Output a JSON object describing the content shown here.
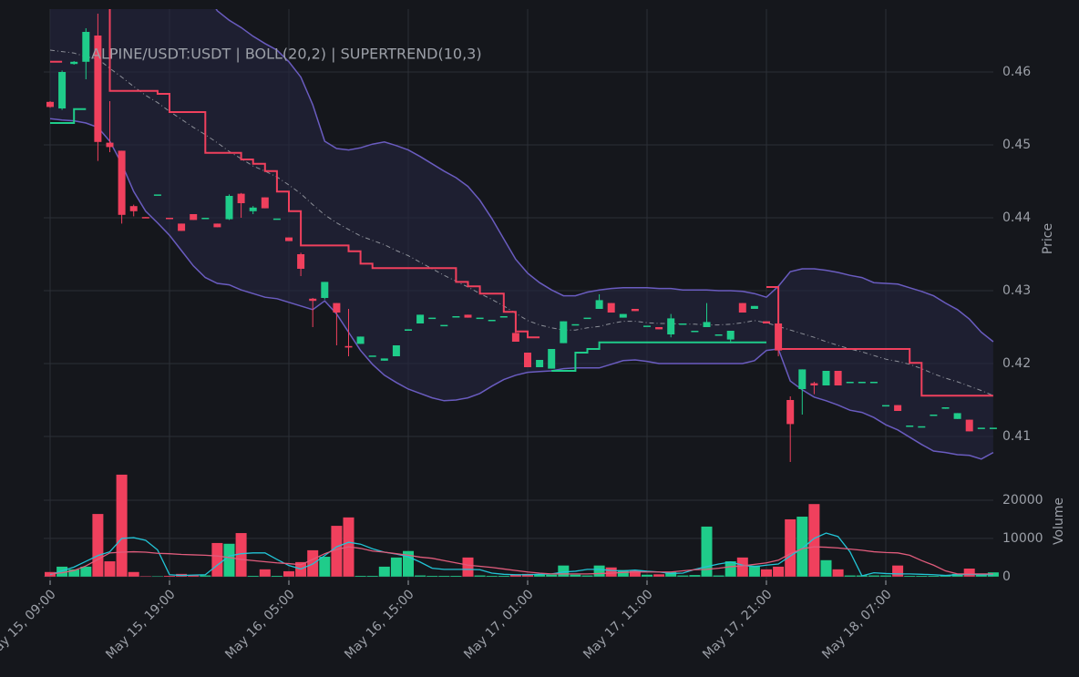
{
  "chart_data": [
    {
      "type": "candlestick",
      "title": "ALPINE/USDT:USDT | BOLL(20,2) | SUPERTREND(10,3)",
      "ylabel": "Price",
      "ylim": [
        0.402375,
        0.468625
      ],
      "yticks": [
        0.41,
        0.42,
        0.43,
        0.44,
        0.45,
        0.46
      ],
      "grid": true,
      "up_color": "#1fcc8a",
      "down_color": "#f0405d",
      "open": [
        0.4559,
        0.455,
        0.4611,
        0.4614,
        0.465,
        0.4503,
        0.4492,
        0.4416,
        0.4401,
        0.4432,
        0.44,
        0.4392,
        0.4405,
        0.44,
        0.4392,
        0.4398,
        0.4433,
        0.4409,
        0.4428,
        0.4399,
        0.4373,
        0.435,
        0.4289,
        0.429,
        0.4283,
        0.4224,
        0.4227,
        0.4211,
        0.4204,
        0.421,
        0.4245,
        0.4255,
        0.4263,
        0.4253,
        0.4265,
        0.4267,
        0.4263,
        0.426,
        0.4265,
        0.4242,
        0.4215,
        0.4195,
        0.4193,
        0.4228,
        0.4254,
        0.4263,
        0.4275,
        0.4283,
        0.4263,
        0.4275,
        0.4252,
        0.425,
        0.424,
        0.4255,
        0.4245,
        0.425,
        0.424,
        0.4233,
        0.4283,
        0.4275,
        0.4258,
        0.4255,
        0.415,
        0.4165,
        0.4173,
        0.417,
        0.419,
        0.4175,
        0.4175,
        0.4175,
        0.4143,
        0.4143,
        0.4115,
        0.4114,
        0.413,
        0.4138,
        0.4124,
        0.4123,
        0.4112,
        0.4112
      ],
      "high": [
        0.456,
        0.4602,
        0.4615,
        0.466,
        0.468,
        0.456,
        0.4492,
        0.4418,
        0.4401,
        0.4432,
        0.44,
        0.4392,
        0.4405,
        0.44,
        0.4392,
        0.4432,
        0.4434,
        0.4416,
        0.4428,
        0.4399,
        0.4373,
        0.4352,
        0.429,
        0.4312,
        0.4283,
        0.4275,
        0.4237,
        0.4211,
        0.4207,
        0.4225,
        0.4247,
        0.4267,
        0.4263,
        0.4253,
        0.4265,
        0.4267,
        0.4263,
        0.426,
        0.4265,
        0.4248,
        0.4215,
        0.4205,
        0.422,
        0.4258,
        0.4254,
        0.4263,
        0.4295,
        0.4283,
        0.4268,
        0.4275,
        0.4252,
        0.425,
        0.4268,
        0.4255,
        0.4245,
        0.4283,
        0.424,
        0.4245,
        0.4283,
        0.4279,
        0.4258,
        0.426,
        0.4155,
        0.4192,
        0.4175,
        0.419,
        0.419,
        0.4175,
        0.4175,
        0.4175,
        0.4143,
        0.4143,
        0.4115,
        0.4114,
        0.413,
        0.414,
        0.4132,
        0.4123,
        0.4112,
        0.4112
      ],
      "low": [
        0.4551,
        0.4548,
        0.461,
        0.459,
        0.4478,
        0.449,
        0.4392,
        0.4402,
        0.44,
        0.4432,
        0.4399,
        0.4382,
        0.4397,
        0.44,
        0.4387,
        0.4397,
        0.44,
        0.4405,
        0.4413,
        0.4399,
        0.4368,
        0.432,
        0.425,
        0.4288,
        0.4225,
        0.421,
        0.4227,
        0.4211,
        0.4204,
        0.421,
        0.4245,
        0.4255,
        0.4263,
        0.4253,
        0.4265,
        0.4263,
        0.4263,
        0.426,
        0.4265,
        0.423,
        0.4195,
        0.4195,
        0.4193,
        0.4228,
        0.4254,
        0.4263,
        0.4275,
        0.427,
        0.4263,
        0.4272,
        0.4252,
        0.4247,
        0.4236,
        0.4255,
        0.4245,
        0.425,
        0.424,
        0.4228,
        0.427,
        0.4275,
        0.4255,
        0.421,
        0.4065,
        0.413,
        0.4158,
        0.417,
        0.417,
        0.4175,
        0.4175,
        0.4175,
        0.4143,
        0.4135,
        0.4115,
        0.4114,
        0.413,
        0.4138,
        0.4124,
        0.4107,
        0.4112,
        0.4112
      ],
      "close": [
        0.4552,
        0.46,
        0.4614,
        0.4655,
        0.4504,
        0.4497,
        0.4404,
        0.4409,
        0.44,
        0.4432,
        0.4399,
        0.4382,
        0.4397,
        0.44,
        0.4387,
        0.443,
        0.442,
        0.4414,
        0.4413,
        0.4399,
        0.4368,
        0.433,
        0.4286,
        0.4312,
        0.427,
        0.4222,
        0.4237,
        0.4211,
        0.4207,
        0.4225,
        0.4247,
        0.4267,
        0.4263,
        0.4253,
        0.4265,
        0.4263,
        0.4263,
        0.426,
        0.4265,
        0.423,
        0.4195,
        0.4205,
        0.422,
        0.4258,
        0.4254,
        0.4263,
        0.4287,
        0.427,
        0.4268,
        0.4272,
        0.4252,
        0.4247,
        0.4262,
        0.4255,
        0.4245,
        0.4257,
        0.424,
        0.4245,
        0.427,
        0.4279,
        0.4255,
        0.4218,
        0.4117,
        0.4192,
        0.417,
        0.419,
        0.417,
        0.4175,
        0.4175,
        0.4175,
        0.4143,
        0.4135,
        0.4115,
        0.4114,
        0.413,
        0.414,
        0.4132,
        0.4107,
        0.4112,
        0.4112
      ],
      "bollinger": {
        "color": "#6a5cc0",
        "middle_color": "#8c8f98",
        "fill": "#25243f",
        "upper": [
          0.48,
          0.48,
          0.48,
          0.4795,
          0.479,
          0.4785,
          0.478,
          0.4775,
          0.477,
          0.476,
          0.475,
          0.474,
          0.4725,
          0.471,
          0.4684,
          0.4671,
          0.4661,
          0.4649,
          0.4639,
          0.463,
          0.4614,
          0.4593,
          0.4555,
          0.4505,
          0.4495,
          0.4493,
          0.4496,
          0.4501,
          0.4504,
          0.4499,
          0.4493,
          0.4484,
          0.4474,
          0.4464,
          0.4455,
          0.4443,
          0.4424,
          0.4399,
          0.4371,
          0.4343,
          0.4324,
          0.4311,
          0.4301,
          0.4293,
          0.4293,
          0.4298,
          0.4301,
          0.4303,
          0.4304,
          0.4304,
          0.4304,
          0.4303,
          0.4303,
          0.4301,
          0.4301,
          0.4301,
          0.43,
          0.43,
          0.4299,
          0.4296,
          0.4291,
          0.4306,
          0.4326,
          0.433,
          0.433,
          0.4328,
          0.4325,
          0.4321,
          0.4318,
          0.4311,
          0.431,
          0.4309,
          0.4304,
          0.4299,
          0.4293,
          0.4283,
          0.4274,
          0.4261,
          0.4243,
          0.423
        ],
        "middle": [
          0.463,
          0.4628,
          0.4626,
          0.4621,
          0.4618,
          0.4605,
          0.4593,
          0.458,
          0.4568,
          0.4558,
          0.4546,
          0.4535,
          0.4524,
          0.4514,
          0.4503,
          0.4491,
          0.4481,
          0.4471,
          0.4464,
          0.4456,
          0.4445,
          0.4433,
          0.4418,
          0.4404,
          0.4393,
          0.4384,
          0.4375,
          0.4369,
          0.4363,
          0.4355,
          0.4348,
          0.4339,
          0.433,
          0.4321,
          0.4313,
          0.4305,
          0.4296,
          0.4288,
          0.4279,
          0.4269,
          0.4259,
          0.4253,
          0.4249,
          0.4246,
          0.4246,
          0.4249,
          0.4251,
          0.4255,
          0.4258,
          0.4258,
          0.4256,
          0.4255,
          0.4255,
          0.4254,
          0.4254,
          0.4253,
          0.4253,
          0.4254,
          0.4256,
          0.4259,
          0.4256,
          0.4251,
          0.4246,
          0.4241,
          0.4236,
          0.423,
          0.4225,
          0.422,
          0.4216,
          0.4211,
          0.4206,
          0.4203,
          0.4199,
          0.4193,
          0.4186,
          0.418,
          0.4175,
          0.4169,
          0.4163,
          0.4156
        ],
        "lower": [
          0.4536,
          0.4534,
          0.4533,
          0.453,
          0.4524,
          0.4505,
          0.4474,
          0.4436,
          0.4409,
          0.4393,
          0.4376,
          0.4355,
          0.4334,
          0.4318,
          0.431,
          0.4308,
          0.4301,
          0.4296,
          0.4291,
          0.4289,
          0.4284,
          0.4279,
          0.4274,
          0.4286,
          0.4268,
          0.4243,
          0.4218,
          0.4199,
          0.4184,
          0.4174,
          0.4165,
          0.4159,
          0.4153,
          0.4149,
          0.415,
          0.4153,
          0.4159,
          0.4169,
          0.4178,
          0.4184,
          0.4188,
          0.4189,
          0.419,
          0.4193,
          0.4194,
          0.4194,
          0.4194,
          0.4199,
          0.4204,
          0.4205,
          0.4203,
          0.42,
          0.42,
          0.42,
          0.42,
          0.42,
          0.42,
          0.42,
          0.42,
          0.4204,
          0.4218,
          0.422,
          0.4176,
          0.4164,
          0.4154,
          0.4149,
          0.4143,
          0.4136,
          0.4133,
          0.4126,
          0.4116,
          0.4109,
          0.4099,
          0.4089,
          0.408,
          0.4078,
          0.4075,
          0.4074,
          0.4069,
          0.4078
        ]
      },
      "supertrend": [
        {
          "color": "#1fcc8a",
          "values": [
            0.453,
            0.453,
            0.4549,
            0.4549,
            null,
            null,
            null,
            null,
            null,
            null,
            null,
            null,
            null,
            null,
            null,
            null,
            null,
            null,
            null,
            null,
            null,
            null,
            null,
            null,
            null,
            null,
            null,
            null,
            null,
            null,
            null,
            null,
            null,
            null,
            null,
            null,
            null,
            null,
            null,
            null,
            null,
            null,
            0.419,
            0.419,
            0.4215,
            0.422,
            0.4229,
            0.4229,
            0.4229,
            0.4229,
            0.4229,
            0.4229,
            0.4229,
            0.4229,
            0.4229,
            0.4229,
            0.4229,
            0.4229,
            0.4229,
            0.4229,
            0.4229,
            null,
            null,
            null,
            null,
            null,
            null,
            null,
            null,
            null,
            null,
            null,
            null,
            null,
            null,
            null,
            null,
            null,
            null,
            null
          ]
        },
        {
          "color": "#f0405d",
          "values": [
            0.4614,
            0.4614,
            null,
            null,
            0.469,
            0.4574,
            0.4574,
            0.4574,
            0.4574,
            0.457,
            0.4545,
            0.4545,
            0.4545,
            0.4489,
            0.4489,
            0.4489,
            0.448,
            0.4474,
            0.4464,
            0.4436,
            0.4409,
            0.4362,
            0.4362,
            0.4362,
            0.4362,
            0.4354,
            0.4337,
            0.4331,
            0.4331,
            0.4331,
            0.4331,
            0.4331,
            0.4331,
            0.4331,
            0.4312,
            0.4306,
            0.4296,
            0.4296,
            0.4271,
            0.4244,
            0.4236,
            0.4236,
            null,
            null,
            null,
            null,
            null,
            null,
            null,
            null,
            null,
            null,
            null,
            null,
            null,
            null,
            null,
            null,
            null,
            null,
            0.4305,
            0.422,
            0.422,
            0.422,
            0.422,
            0.422,
            0.422,
            0.422,
            0.422,
            0.422,
            0.422,
            0.422,
            0.4201,
            0.4156,
            0.4156,
            0.4156,
            0.4156,
            0.4156,
            0.4156,
            0.4156
          ]
        }
      ]
    },
    {
      "type": "bar",
      "ylabel": "Volume",
      "ylim": [
        -1000,
        27400
      ],
      "yticks": [
        0,
        10000,
        20000
      ],
      "grid": true,
      "categories": [
        "May 15, 09:00",
        null,
        null,
        null,
        null,
        null,
        null,
        null,
        null,
        null,
        "May 15, 19:00",
        null,
        null,
        null,
        null,
        null,
        null,
        null,
        null,
        null,
        "May 16, 05:00",
        null,
        null,
        null,
        null,
        null,
        null,
        null,
        null,
        null,
        "May 16, 15:00",
        null,
        null,
        null,
        null,
        null,
        null,
        null,
        null,
        null,
        "May 17, 01:00",
        null,
        null,
        null,
        null,
        null,
        null,
        null,
        null,
        null,
        "May 17, 11:00",
        null,
        null,
        null,
        null,
        null,
        null,
        null,
        null,
        null,
        "May 17, 21:00",
        null,
        null,
        null,
        null,
        null,
        null,
        null,
        null,
        null,
        "May 18, 07:00",
        null,
        null,
        null,
        null,
        null,
        null,
        null,
        null,
        null
      ],
      "values": [
        1200,
        2600,
        1900,
        2600,
        16400,
        4000,
        26700,
        1200,
        100,
        100,
        200,
        700,
        300,
        300,
        8800,
        8600,
        11400,
        200,
        1900,
        200,
        1400,
        3800,
        6900,
        5200,
        13300,
        15500,
        200,
        200,
        2600,
        5000,
        6700,
        300,
        200,
        200,
        200,
        5000,
        300,
        200,
        200,
        500,
        700,
        500,
        500,
        2900,
        500,
        300,
        2900,
        2400,
        1700,
        1700,
        500,
        600,
        1200,
        300,
        400,
        13100,
        300,
        4000,
        5000,
        2900,
        1900,
        2600,
        15000,
        15700,
        19000,
        4300,
        1900,
        300,
        300,
        300,
        300,
        2900,
        200,
        200,
        200,
        400,
        700,
        2100,
        800,
        1100
      ],
      "lines": [
        {
          "color": "#22c4d6",
          "values": [
            500,
            1500,
            2500,
            4000,
            5500,
            6500,
            10000,
            10200,
            9500,
            7000,
            500,
            300,
            400,
            500,
            3000,
            5400,
            6000,
            6200,
            6200,
            4500,
            2900,
            2000,
            3300,
            5500,
            7800,
            9000,
            8500,
            7300,
            6400,
            5900,
            5200,
            3800,
            2200,
            1900,
            1900,
            1900,
            1800,
            900,
            600,
            500,
            500,
            600,
            700,
            1200,
            1400,
            1900,
            1900,
            1600,
            1500,
            1700,
            1400,
            1200,
            800,
            900,
            1900,
            2600,
            3300,
            3800,
            3000,
            2600,
            3000,
            3300,
            5400,
            7400,
            10000,
            11400,
            10500,
            6500,
            200,
            1000,
            800,
            700,
            700,
            600,
            500,
            300,
            500,
            600,
            500,
            500
          ]
        },
        {
          "color": "#e05c7c",
          "values": [
            700,
            1000,
            1600,
            2800,
            4500,
            6200,
            6400,
            6500,
            6400,
            6100,
            6000,
            5800,
            5700,
            5600,
            5400,
            5000,
            4500,
            4200,
            3900,
            3600,
            3400,
            3100,
            4500,
            6000,
            7100,
            7800,
            7400,
            6700,
            6400,
            6000,
            5600,
            5100,
            4800,
            4200,
            3600,
            3000,
            2700,
            2400,
            2000,
            1600,
            1200,
            900,
            700,
            700,
            700,
            700,
            800,
            900,
            1100,
            1200,
            1200,
            1200,
            1200,
            1500,
            1800,
            1900,
            2200,
            2600,
            2800,
            3200,
            3600,
            4300,
            6000,
            7300,
            7800,
            7700,
            7500,
            7200,
            6900,
            6500,
            6300,
            6200,
            5600,
            4200,
            3000,
            1500,
            700,
            700,
            700,
            700
          ]
        }
      ]
    }
  ]
}
